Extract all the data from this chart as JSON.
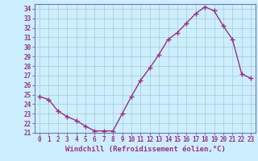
{
  "x": [
    0,
    1,
    2,
    3,
    4,
    5,
    6,
    7,
    8,
    9,
    10,
    11,
    12,
    13,
    14,
    15,
    16,
    17,
    18,
    19,
    20,
    21,
    22,
    23
  ],
  "y": [
    24.8,
    24.5,
    23.3,
    22.7,
    22.3,
    21.7,
    21.2,
    21.2,
    21.2,
    23.0,
    24.8,
    26.5,
    27.8,
    29.2,
    30.8,
    31.5,
    32.5,
    33.5,
    34.2,
    33.8,
    32.2,
    30.8,
    27.2,
    26.7
  ],
  "line_color": "#993388",
  "marker": "+",
  "marker_size": 4,
  "bg_color": "#cceeff",
  "grid_color": "#aacccc",
  "xlabel": "Windchill (Refroidissement éolien,°C)",
  "ylabel": "",
  "ylim": [
    21,
    34.5
  ],
  "xlim": [
    -0.5,
    23.5
  ],
  "yticks": [
    21,
    22,
    23,
    24,
    25,
    26,
    27,
    28,
    29,
    30,
    31,
    32,
    33,
    34
  ],
  "xticks": [
    0,
    1,
    2,
    3,
    4,
    5,
    6,
    7,
    8,
    9,
    10,
    11,
    12,
    13,
    14,
    15,
    16,
    17,
    18,
    19,
    20,
    21,
    22,
    23
  ],
  "tick_fontsize": 5.5,
  "xlabel_fontsize": 6.5,
  "spine_color": "#7777aa",
  "line_width": 1.0
}
